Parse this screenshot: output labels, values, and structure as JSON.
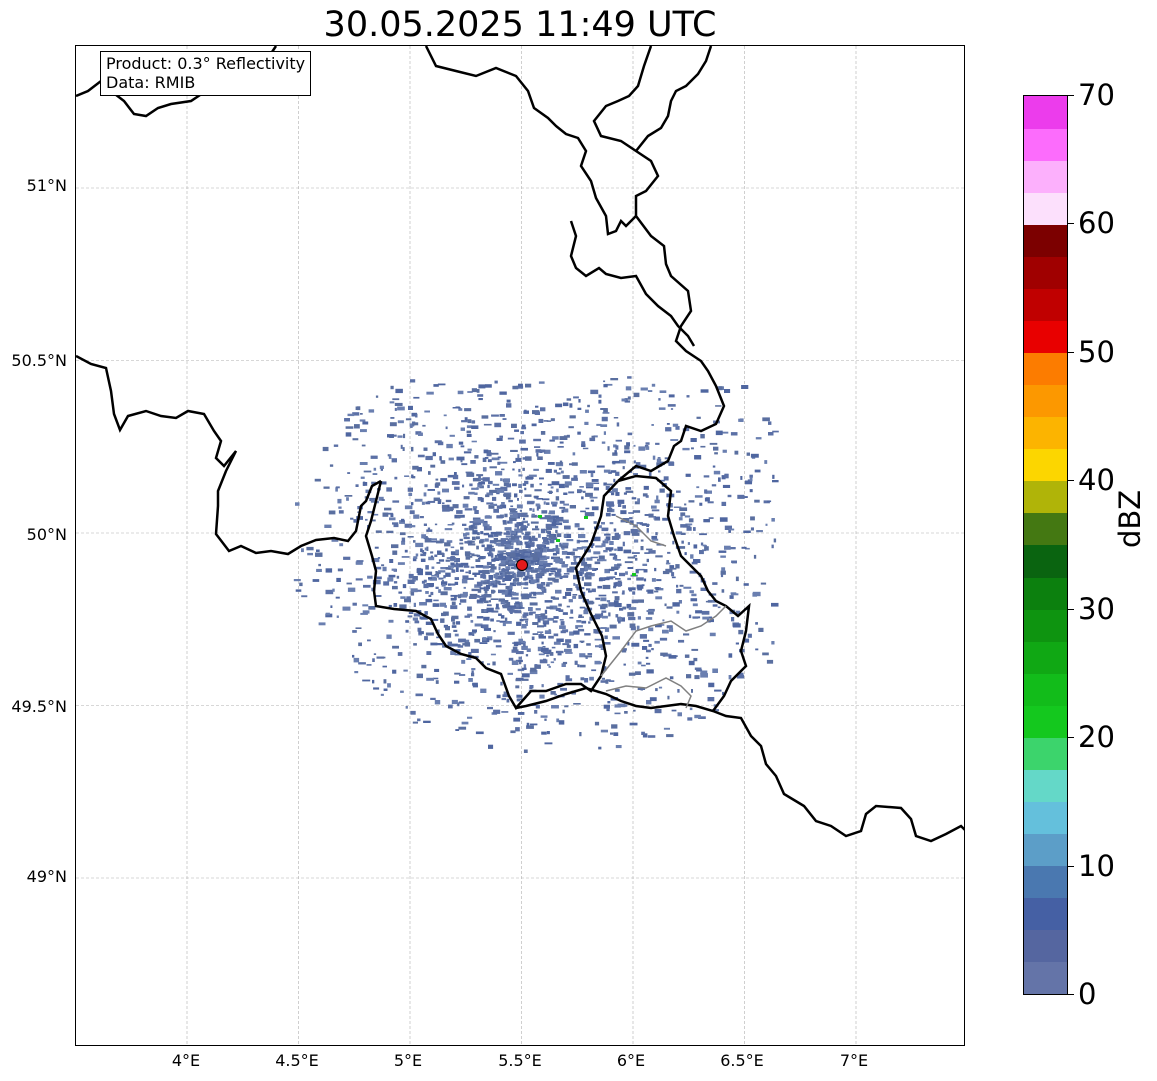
{
  "title": "30.05.2025 11:49 UTC",
  "info_box": {
    "line1": "Product: 0.3° Reflectivity",
    "line2": "Data: RMIB"
  },
  "map": {
    "lon_labels": [
      "4°E",
      "4.5°E",
      "5°E",
      "5.5°E",
      "6°E",
      "6.5°E",
      "7°E"
    ],
    "lat_labels": [
      "51°N",
      "50.5°N",
      "50°N",
      "49.5°N",
      "49°N"
    ],
    "radar_site": {
      "lon": 5.5,
      "lat": 49.915,
      "color": "#e31a1c"
    },
    "grid_line_color": "#b0b0b0",
    "border_color": "#000000",
    "precip_color": "#5a6fa0"
  },
  "colorbar": {
    "unit": "dBZ",
    "min": 0,
    "max": 70,
    "tick_labels": [
      "0",
      "10",
      "20",
      "30",
      "40",
      "50",
      "60",
      "70"
    ],
    "colors": [
      "#6474a8",
      "#5566a0",
      "#4560a4",
      "#4a78b0",
      "#5c9ec8",
      "#64c0dc",
      "#64d8c8",
      "#3cd46c",
      "#14c81e",
      "#12bc1a",
      "#10a814",
      "#0e9410",
      "#0c800e",
      "#0a6410",
      "#447812",
      "#b0b408",
      "#fcd600",
      "#fcb400",
      "#fc9800",
      "#fc7c00",
      "#e80000",
      "#c00000",
      "#a00000",
      "#7c0000",
      "#fce0fc",
      "#fcb0fc",
      "#fc6cfc",
      "#ec3cec"
    ]
  }
}
